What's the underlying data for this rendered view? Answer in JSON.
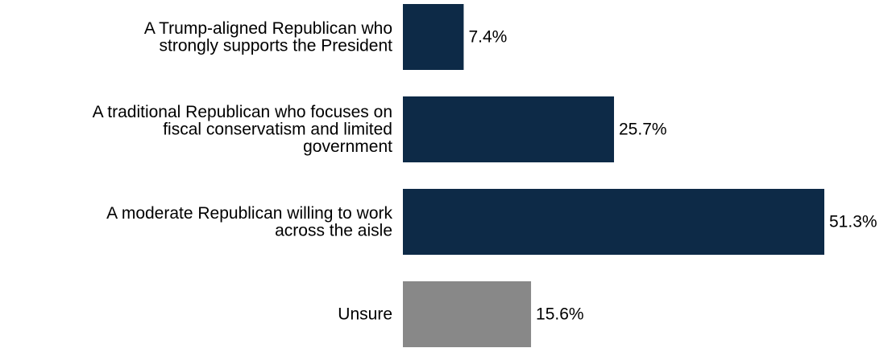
{
  "chart_data": {
    "type": "bar",
    "orientation": "horizontal",
    "title": "",
    "xlabel": "",
    "ylabel": "",
    "categories": [
      [
        "A Trump-aligned Republican who",
        "strongly supports the President"
      ],
      [
        "A traditional Republican who focuses on",
        "fiscal conservatism and limited",
        "government"
      ],
      [
        "A moderate Republican willing to work",
        "across the aisle"
      ],
      [
        "Unsure"
      ]
    ],
    "values": [
      7.4,
      25.7,
      51.3,
      15.6
    ],
    "value_labels": [
      "7.4%",
      "25.7%",
      "51.3%",
      "15.6%"
    ],
    "bar_colors": [
      "#0d2a47",
      "#0d2a47",
      "#0d2a47",
      "#888888"
    ],
    "xlim": [
      0,
      51.3
    ],
    "grid": false,
    "legend": "none"
  }
}
